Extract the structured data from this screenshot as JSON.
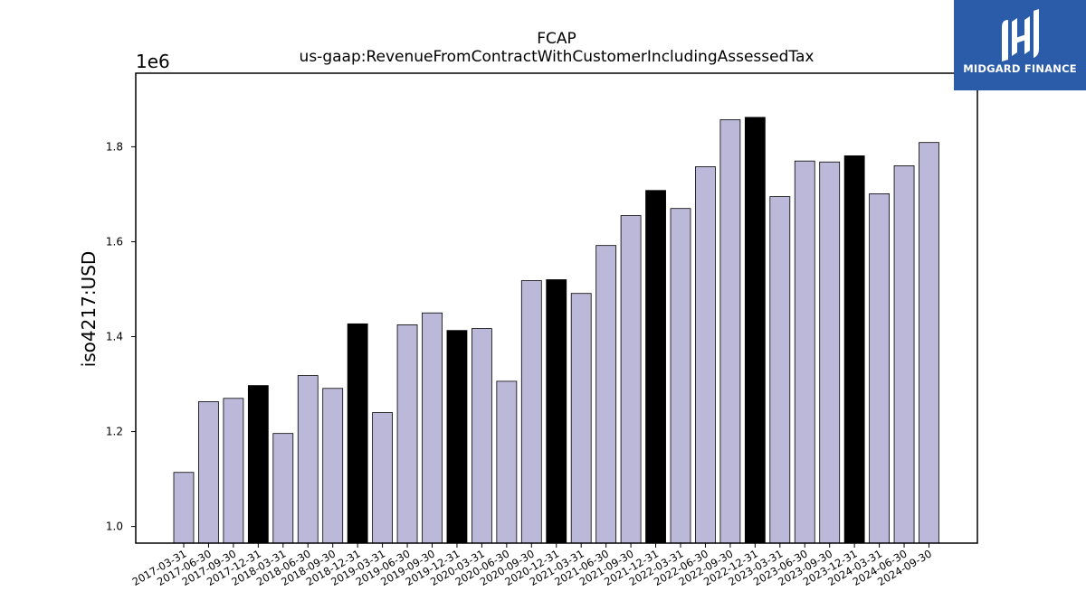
{
  "chart_data": {
    "type": "bar",
    "title": "FCAP",
    "subtitle": "us-gaap:RevenueFromContractWithCustomerIncludingAssessedTax",
    "ylabel": "iso4217:USD",
    "xlabel": "",
    "y_multiplier": "1e6",
    "ylim": [
      0.965,
      1.955
    ],
    "yticks": [
      "1.0",
      "1.2",
      "1.4",
      "1.6",
      "1.8"
    ],
    "grid": false,
    "bar_color": "#bcb8d9",
    "highlight_color": "#000000",
    "categories": [
      "2017-03-31",
      "2017-06-30",
      "2017-09-30",
      "2017-12-31",
      "2018-03-31",
      "2018-06-30",
      "2018-09-30",
      "2018-12-31",
      "2019-03-31",
      "2019-06-30",
      "2019-09-30",
      "2019-12-31",
      "2020-03-31",
      "2020-06-30",
      "2020-09-30",
      "2020-12-31",
      "2021-03-31",
      "2021-06-30",
      "2021-09-30",
      "2021-12-31",
      "2022-03-31",
      "2022-06-30",
      "2022-09-30",
      "2022-12-31",
      "2023-03-31",
      "2023-06-30",
      "2023-09-30",
      "2023-12-31",
      "2024-03-31",
      "2024-06-30",
      "2024-09-30"
    ],
    "values": [
      1.114,
      1.263,
      1.27,
      1.297,
      1.196,
      1.318,
      1.291,
      1.427,
      1.24,
      1.425,
      1.45,
      1.413,
      1.417,
      1.306,
      1.518,
      1.52,
      1.491,
      1.592,
      1.655,
      1.708,
      1.67,
      1.758,
      1.857,
      1.862,
      1.695,
      1.77,
      1.768,
      1.781,
      1.701,
      1.76,
      1.809
    ],
    "highlighted": [
      false,
      false,
      false,
      true,
      false,
      false,
      false,
      true,
      false,
      false,
      false,
      true,
      false,
      false,
      false,
      true,
      false,
      false,
      false,
      true,
      false,
      false,
      false,
      true,
      false,
      false,
      false,
      true,
      false,
      false,
      false
    ]
  },
  "logo": {
    "text": "MIDGARD FINANCE"
  }
}
